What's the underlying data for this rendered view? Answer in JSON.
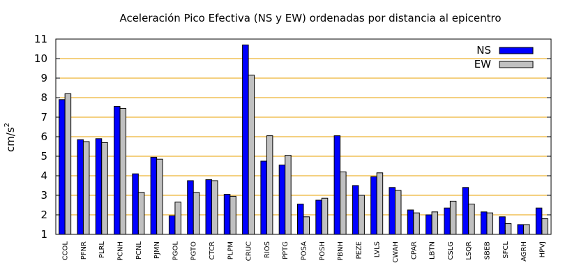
{
  "chart_data": {
    "type": "bar",
    "title": "Aceleración Pico Efectiva (NS y EW) ordenadas por distancia al epicentro",
    "ylabel": "cm/s",
    "ylabel_superscript": "2",
    "ylim": [
      1,
      11
    ],
    "yticks": [
      "1",
      "2",
      "3",
      "4",
      "5",
      "6",
      "7",
      "8",
      "9",
      "10",
      "11"
    ],
    "grid": true,
    "legend_position": "top-right",
    "categories": [
      "CCOL",
      "PFNR",
      "PLRL",
      "PCNH",
      "PCNL",
      "PJMN",
      "PGOL",
      "PGTO",
      "CTCR",
      "PLPM",
      "CRUC",
      "RIOS",
      "PPTG",
      "POSA",
      "POSH",
      "PBNH",
      "PEZE",
      "LVLS",
      "CWAH",
      "CPAR",
      "LBTN",
      "CSLG",
      "LSQR",
      "SBEB",
      "SFCL",
      "AGRH",
      "HPVJ"
    ],
    "series": [
      {
        "name": "NS",
        "color": "#0000ff",
        "values": [
          7.9,
          5.85,
          5.9,
          7.55,
          4.1,
          4.95,
          1.95,
          3.75,
          3.8,
          3.05,
          10.7,
          4.75,
          4.55,
          2.55,
          2.75,
          6.05,
          3.5,
          3.95,
          3.4,
          2.25,
          2.0,
          2.35,
          3.4,
          2.15,
          1.9,
          1.5,
          2.35
        ]
      },
      {
        "name": "EW",
        "color": "#c0c0c0",
        "values": [
          8.2,
          5.75,
          5.7,
          7.45,
          3.15,
          4.85,
          2.65,
          3.15,
          3.75,
          2.95,
          9.15,
          6.05,
          5.05,
          1.9,
          2.85,
          4.2,
          3.0,
          4.15,
          3.25,
          2.1,
          2.15,
          2.7,
          2.55,
          2.1,
          1.55,
          1.5,
          1.8
        ]
      }
    ],
    "colors": {
      "grid": "#e8a000",
      "frame": "#000000"
    }
  }
}
